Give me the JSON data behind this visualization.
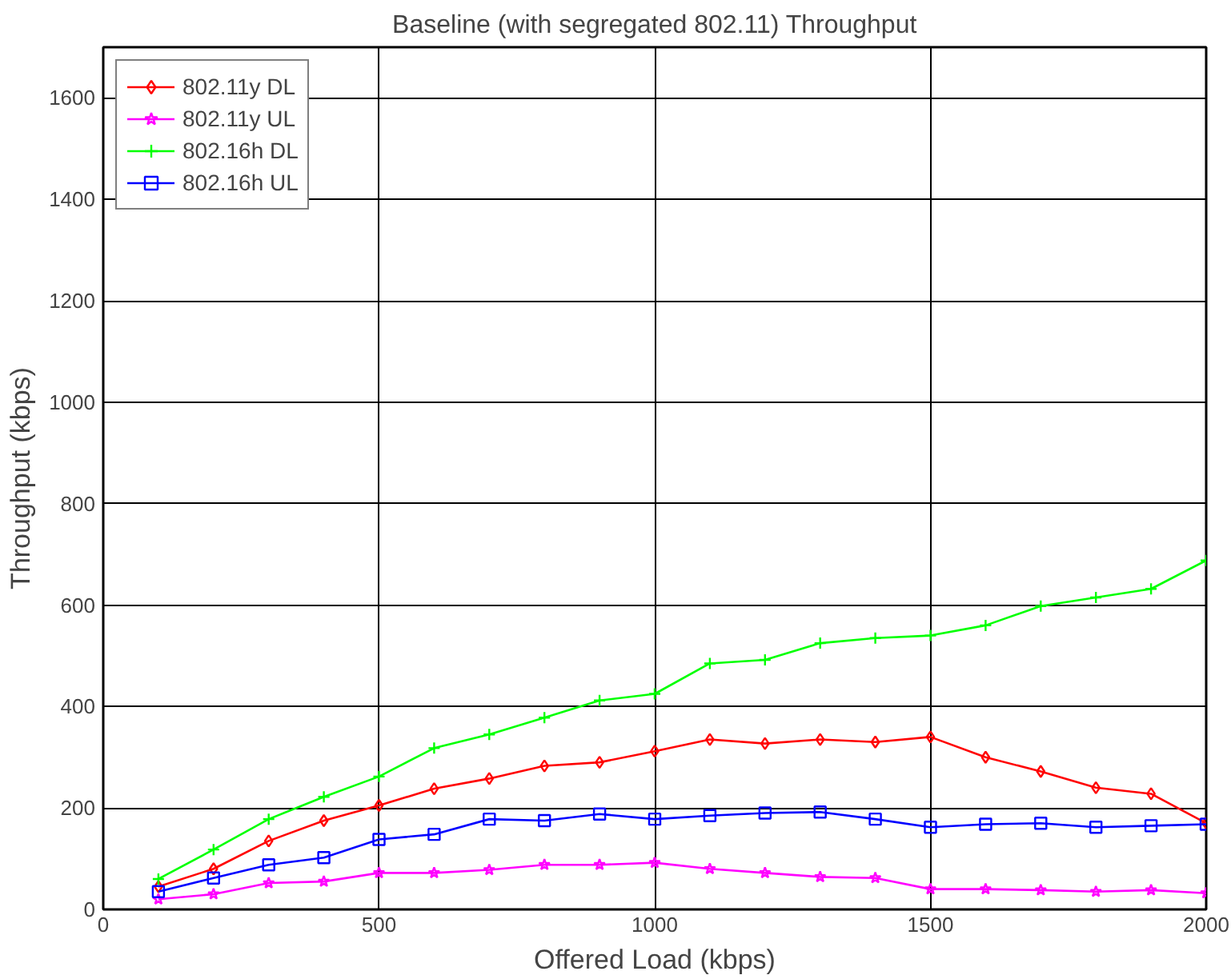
{
  "chart_data": {
    "type": "line",
    "title": "Baseline (with segregated 802.11) Throughput",
    "xlabel": "Offered Load (kbps)",
    "ylabel": "Throughput (kbps)",
    "x": [
      100,
      200,
      300,
      400,
      500,
      600,
      700,
      800,
      900,
      1000,
      1100,
      1200,
      1300,
      1400,
      1500,
      1600,
      1700,
      1800,
      1900,
      2000
    ],
    "series": [
      {
        "name": "802.11y DL",
        "color": "#ff0000",
        "marker": "diamond",
        "values": [
          45,
          80,
          135,
          175,
          205,
          238,
          258,
          283,
          290,
          312,
          335,
          327,
          335,
          330,
          340,
          300,
          272,
          240,
          228,
          170
        ]
      },
      {
        "name": "802.11y UL",
        "color": "#ff00ff",
        "marker": "star",
        "values": [
          20,
          30,
          52,
          55,
          72,
          72,
          78,
          88,
          88,
          92,
          80,
          72,
          64,
          62,
          40,
          40,
          38,
          35,
          38,
          32
        ]
      },
      {
        "name": "802.16h DL",
        "color": "#00ff00",
        "marker": "cross",
        "values": [
          60,
          118,
          178,
          222,
          262,
          318,
          345,
          378,
          412,
          425,
          485,
          492,
          525,
          535,
          540,
          560,
          598,
          615,
          632,
          688
        ]
      },
      {
        "name": "802.16h UL",
        "color": "#0000ff",
        "marker": "square",
        "values": [
          35,
          62,
          88,
          102,
          138,
          148,
          178,
          175,
          188,
          178,
          185,
          190,
          192,
          178,
          162,
          168,
          170,
          162,
          165,
          168
        ]
      }
    ],
    "xlim": [
      0,
      2000
    ],
    "ylim": [
      0,
      1700
    ],
    "xticks": [
      0,
      500,
      1000,
      1500,
      2000
    ],
    "yticks": [
      0,
      200,
      400,
      600,
      800,
      1000,
      1200,
      1400,
      1600
    ],
    "grid": true,
    "legend": "top left",
    "line_style": "solid"
  }
}
